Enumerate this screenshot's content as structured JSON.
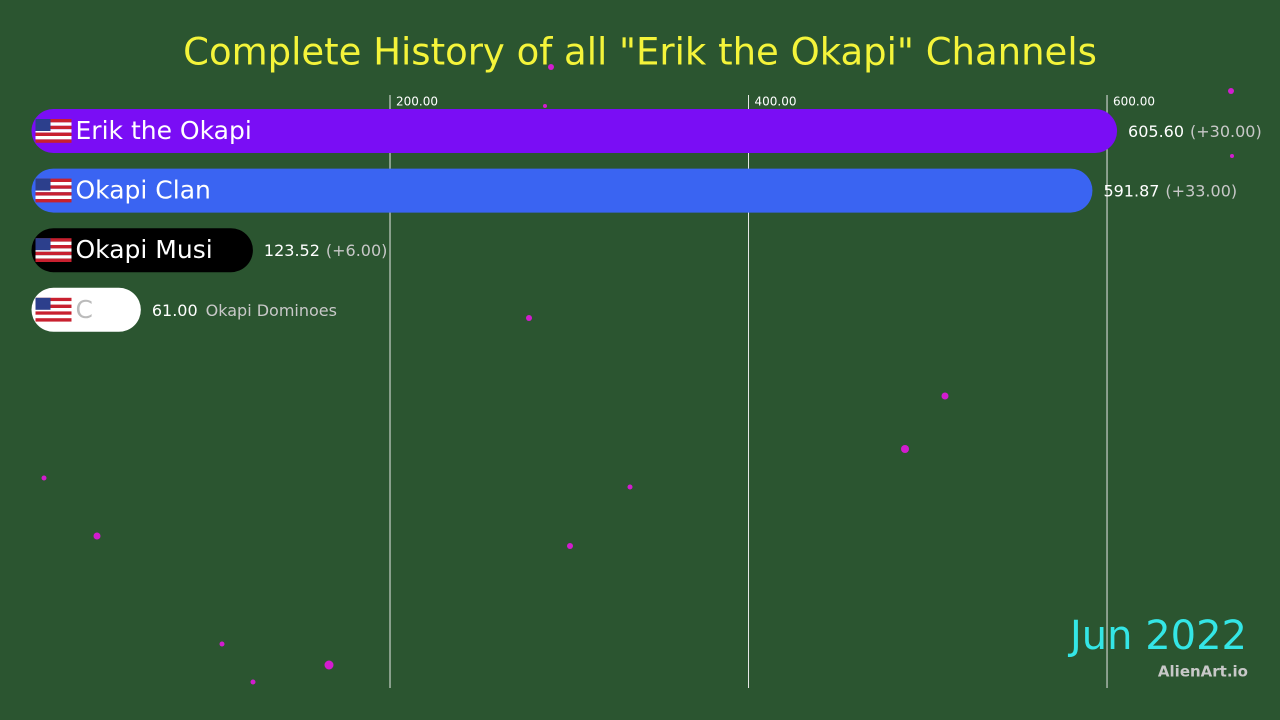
{
  "chart_data": {
    "type": "bar",
    "orientation": "horizontal",
    "title": "Complete History of all \"Erik the Okapi\" Channels",
    "categories": [
      "Erik the Okapi",
      "Okapi Clan",
      "Okapi Musi",
      "C"
    ],
    "values": [
      605.6,
      591.87,
      123.52,
      61
    ],
    "value_labels": [
      "605.60",
      "591.87",
      "123.52",
      "61.00"
    ],
    "changes": [
      30,
      33,
      6,
      null
    ],
    "change_labels": [
      "(+30.00)",
      "(+33.00)",
      "(+6.00)",
      null
    ],
    "outside_labels": [
      null,
      null,
      null,
      "Okapi Dominoes"
    ],
    "colors": [
      "#7a0df5",
      "#3a64f2",
      "#000000",
      "#ffffff"
    ],
    "xlim": [
      0,
      696.5
    ],
    "xticks": [
      {
        "value": 200,
        "label": "200.00"
      },
      {
        "value": 400,
        "label": "400.00"
      },
      {
        "value": 600,
        "label": "600.00"
      }
    ],
    "grid": true,
    "date": "Jun 2022",
    "watermark": "AlienArt.io"
  }
}
